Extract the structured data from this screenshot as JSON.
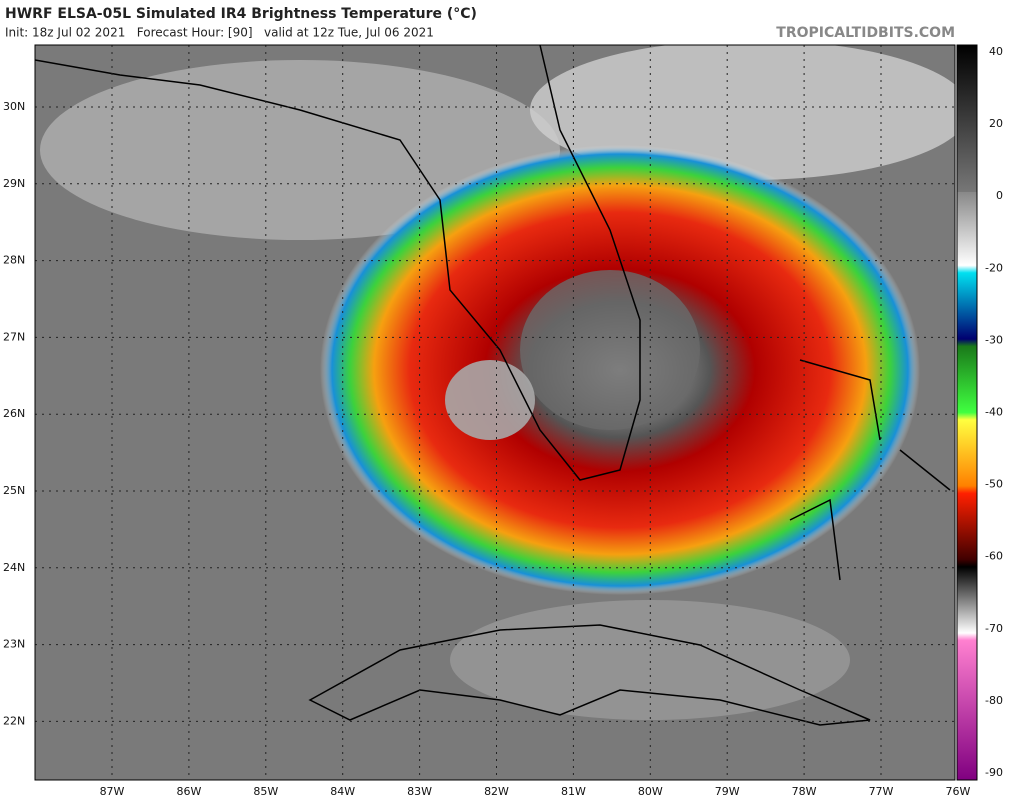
{
  "header": {
    "title": "HWRF ELSA-05L Simulated IR4 Brightness Temperature (°C)",
    "subtitle": "Init: 18z Jul 02 2021   Forecast Hour: [90]   valid at 12z Tue, Jul 06 2021",
    "source": "TROPICALTIDBITS.COM"
  },
  "map": {
    "latitude_labels": [
      "30N",
      "29N",
      "28N",
      "27N",
      "26N",
      "25N",
      "24N",
      "23N",
      "22N"
    ],
    "longitude_labels": [
      "87W",
      "86W",
      "85W",
      "84W",
      "83W",
      "82W",
      "81W",
      "80W",
      "79W",
      "78W",
      "77W",
      "76W"
    ]
  },
  "colorbar": {
    "labels": [
      40,
      20,
      0,
      -20,
      -30,
      -40,
      -50,
      -60,
      -70,
      -80,
      -90
    ]
  }
}
